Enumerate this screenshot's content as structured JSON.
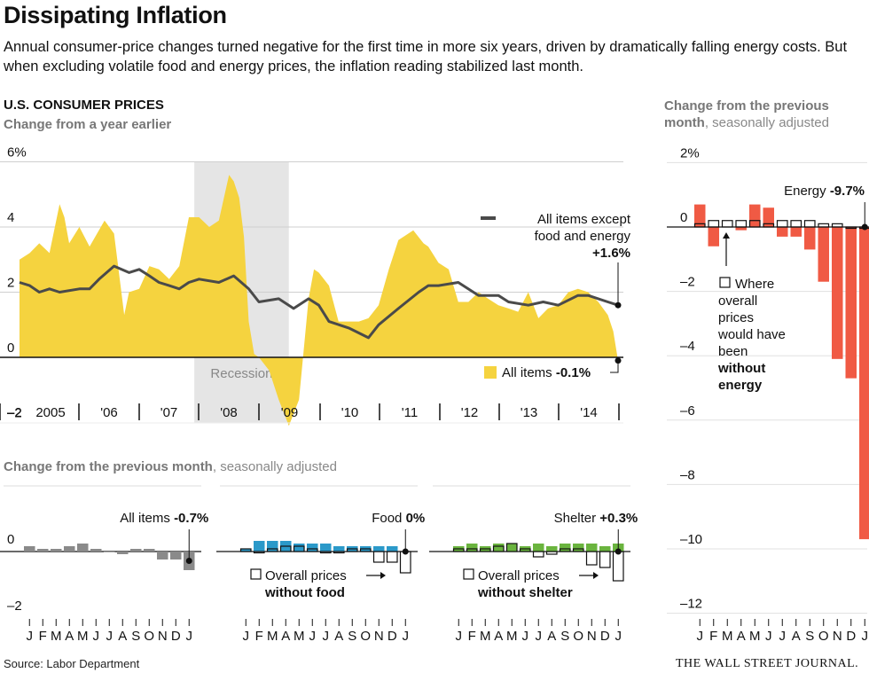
{
  "headline": "Dissipating Inflation",
  "dek": "Annual consumer-price changes turned negative for the first time in more six years, driven by dramatically falling energy costs. But when excluding volatile food and energy prices, the inflation reading stabilized last month.",
  "source": "Source: Labor Department",
  "logo": "THE WALL STREET JOURNAL.",
  "colors": {
    "all_items": "#f5d33f",
    "core_line": "#4a4a4a",
    "food": "#2b99c9",
    "shelter": "#6ab43e",
    "energy": "#f05a44",
    "all_items_monthly": "#8a8a8a",
    "recession": "#e5e5e5"
  },
  "chart_data": [
    {
      "type": "area",
      "title": "U.S. CONSUMER PRICES",
      "subtitle": "Change from a year earlier",
      "x_labels": [
        "2005",
        "'06",
        "'07",
        "'08",
        "'09",
        "'10",
        "'11",
        "'12",
        "'13",
        "'14"
      ],
      "y_ticks": [
        "6%",
        "4",
        "2",
        "0",
        "–2"
      ],
      "ylim": [
        -2,
        6
      ],
      "recession_label": "Recession",
      "recession": [
        2007.92,
        2009.5
      ],
      "series": [
        {
          "name": "All items",
          "label_value": "-0.1%",
          "points": [
            [
              2005.0,
              3.0
            ],
            [
              2005.17,
              3.2
            ],
            [
              2005.33,
              3.5
            ],
            [
              2005.5,
              3.2
            ],
            [
              2005.67,
              4.7
            ],
            [
              2005.75,
              4.3
            ],
            [
              2005.83,
              3.5
            ],
            [
              2006.0,
              4.0
            ],
            [
              2006.17,
              3.4
            ],
            [
              2006.42,
              4.2
            ],
            [
              2006.58,
              3.8
            ],
            [
              2006.75,
              1.3
            ],
            [
              2006.83,
              2.0
            ],
            [
              2007.0,
              2.1
            ],
            [
              2007.17,
              2.8
            ],
            [
              2007.33,
              2.7
            ],
            [
              2007.5,
              2.4
            ],
            [
              2007.67,
              2.8
            ],
            [
              2007.83,
              4.3
            ],
            [
              2008.0,
              4.3
            ],
            [
              2008.17,
              4.0
            ],
            [
              2008.33,
              4.2
            ],
            [
              2008.5,
              5.6
            ],
            [
              2008.58,
              5.4
            ],
            [
              2008.67,
              4.9
            ],
            [
              2008.75,
              3.7
            ],
            [
              2008.83,
              1.1
            ],
            [
              2008.92,
              0.1
            ],
            [
              2009.0,
              0.0
            ],
            [
              2009.17,
              -0.4
            ],
            [
              2009.33,
              -1.3
            ],
            [
              2009.5,
              -2.1
            ],
            [
              2009.67,
              -1.3
            ],
            [
              2009.83,
              1.8
            ],
            [
              2009.92,
              2.7
            ],
            [
              2010.0,
              2.6
            ],
            [
              2010.17,
              2.2
            ],
            [
              2010.33,
              1.1
            ],
            [
              2010.67,
              1.1
            ],
            [
              2010.83,
              1.2
            ],
            [
              2011.0,
              1.6
            ],
            [
              2011.17,
              2.7
            ],
            [
              2011.33,
              3.6
            ],
            [
              2011.58,
              3.9
            ],
            [
              2011.75,
              3.5
            ],
            [
              2011.83,
              3.4
            ],
            [
              2012.0,
              2.9
            ],
            [
              2012.17,
              2.7
            ],
            [
              2012.33,
              1.7
            ],
            [
              2012.5,
              1.7
            ],
            [
              2012.67,
              2.0
            ],
            [
              2012.83,
              1.8
            ],
            [
              2013.0,
              1.6
            ],
            [
              2013.17,
              1.5
            ],
            [
              2013.33,
              1.4
            ],
            [
              2013.5,
              2.0
            ],
            [
              2013.67,
              1.2
            ],
            [
              2013.83,
              1.5
            ],
            [
              2014.0,
              1.6
            ],
            [
              2014.17,
              2.0
            ],
            [
              2014.33,
              2.1
            ],
            [
              2014.5,
              2.0
            ],
            [
              2014.67,
              1.7
            ],
            [
              2014.83,
              1.3
            ],
            [
              2014.92,
              0.8
            ],
            [
              2015.0,
              -0.1
            ]
          ]
        },
        {
          "name": "All items except food and energy",
          "label_value": "+1.6%",
          "points": [
            [
              2005.0,
              2.3
            ],
            [
              2005.17,
              2.2
            ],
            [
              2005.33,
              2.0
            ],
            [
              2005.5,
              2.1
            ],
            [
              2005.67,
              2.0
            ],
            [
              2006.0,
              2.1
            ],
            [
              2006.17,
              2.1
            ],
            [
              2006.33,
              2.4
            ],
            [
              2006.58,
              2.8
            ],
            [
              2006.83,
              2.6
            ],
            [
              2007.0,
              2.7
            ],
            [
              2007.17,
              2.5
            ],
            [
              2007.33,
              2.3
            ],
            [
              2007.5,
              2.2
            ],
            [
              2007.67,
              2.1
            ],
            [
              2007.83,
              2.3
            ],
            [
              2008.0,
              2.4
            ],
            [
              2008.33,
              2.3
            ],
            [
              2008.58,
              2.5
            ],
            [
              2008.83,
              2.1
            ],
            [
              2009.0,
              1.7
            ],
            [
              2009.33,
              1.8
            ],
            [
              2009.58,
              1.5
            ],
            [
              2009.83,
              1.8
            ],
            [
              2010.0,
              1.6
            ],
            [
              2010.17,
              1.1
            ],
            [
              2010.5,
              0.9
            ],
            [
              2010.83,
              0.6
            ],
            [
              2011.0,
              1.0
            ],
            [
              2011.33,
              1.5
            ],
            [
              2011.67,
              2.0
            ],
            [
              2011.83,
              2.2
            ],
            [
              2012.0,
              2.2
            ],
            [
              2012.33,
              2.3
            ],
            [
              2012.67,
              1.9
            ],
            [
              2012.83,
              1.9
            ],
            [
              2013.0,
              1.9
            ],
            [
              2013.17,
              1.7
            ],
            [
              2013.5,
              1.6
            ],
            [
              2013.75,
              1.7
            ],
            [
              2014.0,
              1.6
            ],
            [
              2014.33,
              1.9
            ],
            [
              2014.5,
              1.9
            ],
            [
              2014.83,
              1.7
            ],
            [
              2015.0,
              1.6
            ]
          ]
        }
      ]
    },
    {
      "type": "bar",
      "title": "Change from the previous month",
      "title_suffix": ", seasonally adjusted",
      "panels": [
        {
          "name": "All items",
          "value_label": "-0.7%",
          "y_ticks": [
            "0",
            "–2"
          ],
          "values": [
            0.2,
            0.1,
            0.1,
            0.2,
            0.3,
            0.1,
            0.0,
            -0.1,
            0.1,
            0.1,
            -0.3,
            -0.3,
            -0.7
          ]
        },
        {
          "name": "Food",
          "value_label": "0%",
          "overlay_label": "Overall prices",
          "overlay_bold": "without food",
          "values": [
            0.1,
            0.4,
            0.4,
            0.4,
            0.3,
            0.3,
            0.3,
            0.2,
            0.2,
            0.2,
            0.2,
            0.2,
            0.0
          ],
          "overall_without": [
            0.1,
            0.0,
            0.1,
            0.2,
            0.2,
            0.1,
            0.0,
            0.0,
            0.1,
            0.1,
            -0.4,
            -0.4,
            -0.8
          ]
        },
        {
          "name": "Shelter",
          "value_label": "+0.3%",
          "overlay_label": "Overall prices",
          "overlay_bold": "without shelter",
          "values": [
            0.2,
            0.3,
            0.2,
            0.3,
            0.3,
            0.2,
            0.3,
            0.2,
            0.3,
            0.3,
            0.3,
            0.2,
            0.3
          ],
          "overall_without": [
            0.1,
            0.1,
            0.1,
            0.2,
            0.3,
            0.1,
            -0.2,
            -0.1,
            0.1,
            0.1,
            -0.5,
            -0.6,
            -1.1
          ]
        }
      ],
      "months": [
        "J",
        "F",
        "M",
        "A",
        "M",
        "J",
        "J",
        "A",
        "S",
        "O",
        "N",
        "D",
        "J"
      ]
    },
    {
      "type": "bar",
      "title": "Change from the previous",
      "title_line2_bold": "month",
      "title_suffix": ", seasonally adjusted",
      "name": "Energy",
      "value_label": "-9.7%",
      "overlay_lines": [
        "Where",
        "overall",
        "prices",
        "would have",
        "been"
      ],
      "overlay_bold": [
        "without",
        "energy"
      ],
      "y_ticks": [
        "2%",
        "0",
        "–2",
        "–4",
        "–6",
        "–8",
        "–10",
        "–12"
      ],
      "ylim": [
        -12,
        2
      ],
      "months": [
        "J",
        "F",
        "M",
        "A",
        "M",
        "J",
        "J",
        "A",
        "S",
        "O",
        "N",
        "D",
        "J"
      ],
      "values": [
        0.7,
        -0.6,
        0.0,
        -0.1,
        0.7,
        0.6,
        -0.3,
        -0.3,
        -0.7,
        -1.7,
        -4.1,
        -4.7,
        -9.7
      ],
      "overall_without": [
        0.1,
        0.2,
        0.2,
        0.2,
        0.2,
        0.1,
        0.2,
        0.2,
        0.2,
        0.1,
        0.1,
        0.0,
        0.0
      ]
    }
  ]
}
